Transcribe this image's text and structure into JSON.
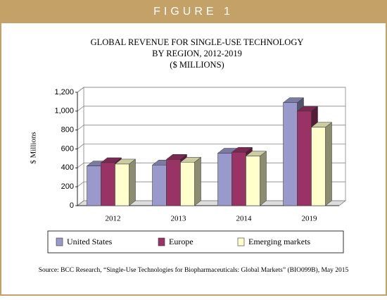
{
  "figure_label": "FIGURE 1",
  "chart_data": {
    "type": "bar3d",
    "title": [
      "GLOBAL REVENUE FOR SINGLE-USE TECHNOLOGY",
      "BY REGION, 2012-2019"
    ],
    "subtitle": "($ MILLIONS)",
    "y_label": "$ Millions",
    "categories": [
      "2012",
      "2013",
      "2014",
      "2019"
    ],
    "series": [
      {
        "name": "United States",
        "color": "#9999cc",
        "values": [
          420,
          430,
          555,
          1090
        ]
      },
      {
        "name": "Europe",
        "color": "#993366",
        "values": [
          455,
          490,
          565,
          1000
        ]
      },
      {
        "name": "Emerging markets",
        "color": "#ffffcc",
        "values": [
          440,
          460,
          525,
          830
        ]
      }
    ],
    "ylim": [
      0,
      1200
    ],
    "yticks": [
      0,
      200,
      400,
      600,
      800,
      {
        "value": 1000,
        "label": "1,000"
      },
      {
        "value": 1200,
        "label": "1,200"
      }
    ],
    "grid": true
  },
  "source": "Source: BCC Research, “Single-Use Technologies for Biopharmaceuticals: Global Markets” (BIO099B), May 2015"
}
